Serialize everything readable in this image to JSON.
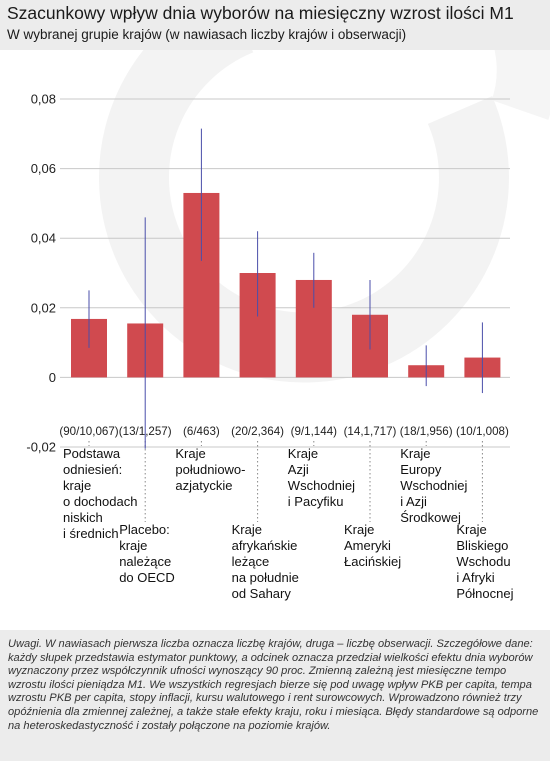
{
  "header": {
    "title": "Szacunkowy wpływ dnia wyborów na miesięczny wzrost ilości M1",
    "subtitle": "W wybranej grupie krajów (w nawiasach liczby krajów i obserwacji)"
  },
  "notes": "Uwagi. W nawiasach pierwsza liczba oznacza liczbę krajów, druga – liczbę obserwacji. Szczegółowe dane: każdy słupek przedstawia estymator punktowy, a odcinek oznacza przedział wielkości efektu dnia wyborów wyznaczony przez współczynnik ufności wynoszący 90 proc. Zmienną zależną jest miesięczne tempo wzrostu ilości pieniądza M1. We wszystkich regresjach bierze się pod uwagę wpływ PKB per capita, tempa wzrostu PKB per capita, stopy inflacji, kursu walutowego i rent surowcowych. Wprowadzono również trzy opóźnienia dla zmiennej zależnej, a także stałe efekty kraju, roku i miesiąca. Błędy standardowe są odporne na heteroskedastyczność i zostały połączone na poziomie krajów.",
  "colors": {
    "bar": "#d04a4f",
    "error_bar": "#4a4eaa",
    "grid": "#c8c8c8",
    "background": "#ffffff"
  },
  "chart_data": {
    "type": "bar",
    "ylim": [
      -0.02,
      0.08
    ],
    "yticks": [
      -0.02,
      0,
      0.02,
      0.04,
      0.06,
      0.08
    ],
    "ytick_labels": [
      "-0,02",
      "0",
      "0,02",
      "0,04",
      "0,06",
      "0,08"
    ],
    "grid": true,
    "categories": [
      {
        "label": [
          "Podstawa",
          "odniesień:",
          "kraje",
          "o dochodach",
          "niskich",
          "i średnich"
        ],
        "obs": "(90/10,067)",
        "value": 0.0168,
        "ci": [
          0.0085,
          0.025
        ]
      },
      {
        "label": [
          "Placebo:",
          "kraje",
          "należące",
          "do OECD"
        ],
        "obs": "(13/1,257)",
        "value": 0.0155,
        "ci": [
          -0.0205,
          0.046
        ]
      },
      {
        "label": [
          "Kraje",
          "południowo-",
          "azjatyckie"
        ],
        "obs": "(6/463)",
        "value": 0.053,
        "ci": [
          0.0335,
          0.0715
        ]
      },
      {
        "label": [
          "Kraje",
          "afrykańskie",
          "leżące",
          "na południe",
          "od Sahary"
        ],
        "obs": "(20/2,364)",
        "value": 0.03,
        "ci": [
          0.0175,
          0.042
        ]
      },
      {
        "label": [
          "Kraje",
          "Azji",
          "Wschodniej",
          "i Pacyfiku"
        ],
        "obs": "(9/1,144)",
        "value": 0.028,
        "ci": [
          0.02,
          0.0358
        ]
      },
      {
        "label": [
          "Kraje",
          "Ameryki",
          "Łacińskiej"
        ],
        "obs": "(14,1,717)",
        "value": 0.018,
        "ci": [
          0.008,
          0.028
        ]
      },
      {
        "label": [
          "Kraje",
          "Europy",
          "Wschodniej",
          "i Azji",
          "Środkowej"
        ],
        "obs": "(18/1,956)",
        "value": 0.0035,
        "ci": [
          -0.0025,
          0.0092
        ]
      },
      {
        "label": [
          "Kraje",
          "Bliskiego",
          "Wschodu",
          "i Afryki",
          "Północnej"
        ],
        "obs": "(10/1,008)",
        "value": 0.0057,
        "ci": [
          -0.0045,
          0.0158
        ]
      }
    ]
  }
}
